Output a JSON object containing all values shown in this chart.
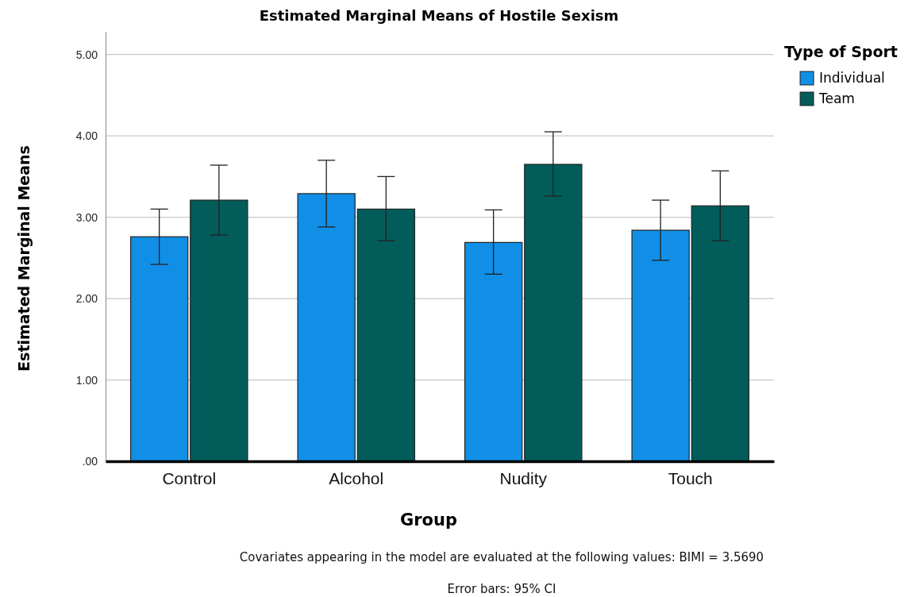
{
  "chart_data": {
    "type": "bar",
    "title": "Estimated Marginal Means of Hostile Sexism",
    "xlabel": "Group",
    "ylabel": "Estimated Marginal Means",
    "categories": [
      "Control",
      "Alcohol",
      "Nudity",
      "Touch"
    ],
    "series": [
      {
        "name": "Individual",
        "color": "#118fe6",
        "values": [
          2.76,
          3.29,
          2.69,
          2.84
        ],
        "errors": [
          [
            2.42,
            3.1
          ],
          [
            2.88,
            3.7
          ],
          [
            2.3,
            3.09
          ],
          [
            2.47,
            3.21
          ]
        ]
      },
      {
        "name": "Team",
        "color": "#015c5a",
        "values": [
          3.21,
          3.1,
          3.65,
          3.14
        ],
        "errors": [
          [
            2.78,
            3.64
          ],
          [
            2.71,
            3.5
          ],
          [
            3.26,
            4.05
          ],
          [
            2.71,
            3.57
          ]
        ]
      }
    ],
    "ylim": [
      0,
      5.28
    ],
    "yticks": [
      {
        "value": 0,
        "label": ".00"
      },
      {
        "value": 1,
        "label": "1.00"
      },
      {
        "value": 2,
        "label": "2.00"
      },
      {
        "value": 3,
        "label": "3.00"
      },
      {
        "value": 4,
        "label": "4.00"
      },
      {
        "value": 5,
        "label": "5.00"
      }
    ],
    "grid": "y",
    "legend": "top right",
    "legend_title": "Type of Sport",
    "annotations": [
      "Covariates appearing in the model are evaluated at the following values: BIMI = 3.5690",
      "Error bars: 95% CI"
    ]
  }
}
